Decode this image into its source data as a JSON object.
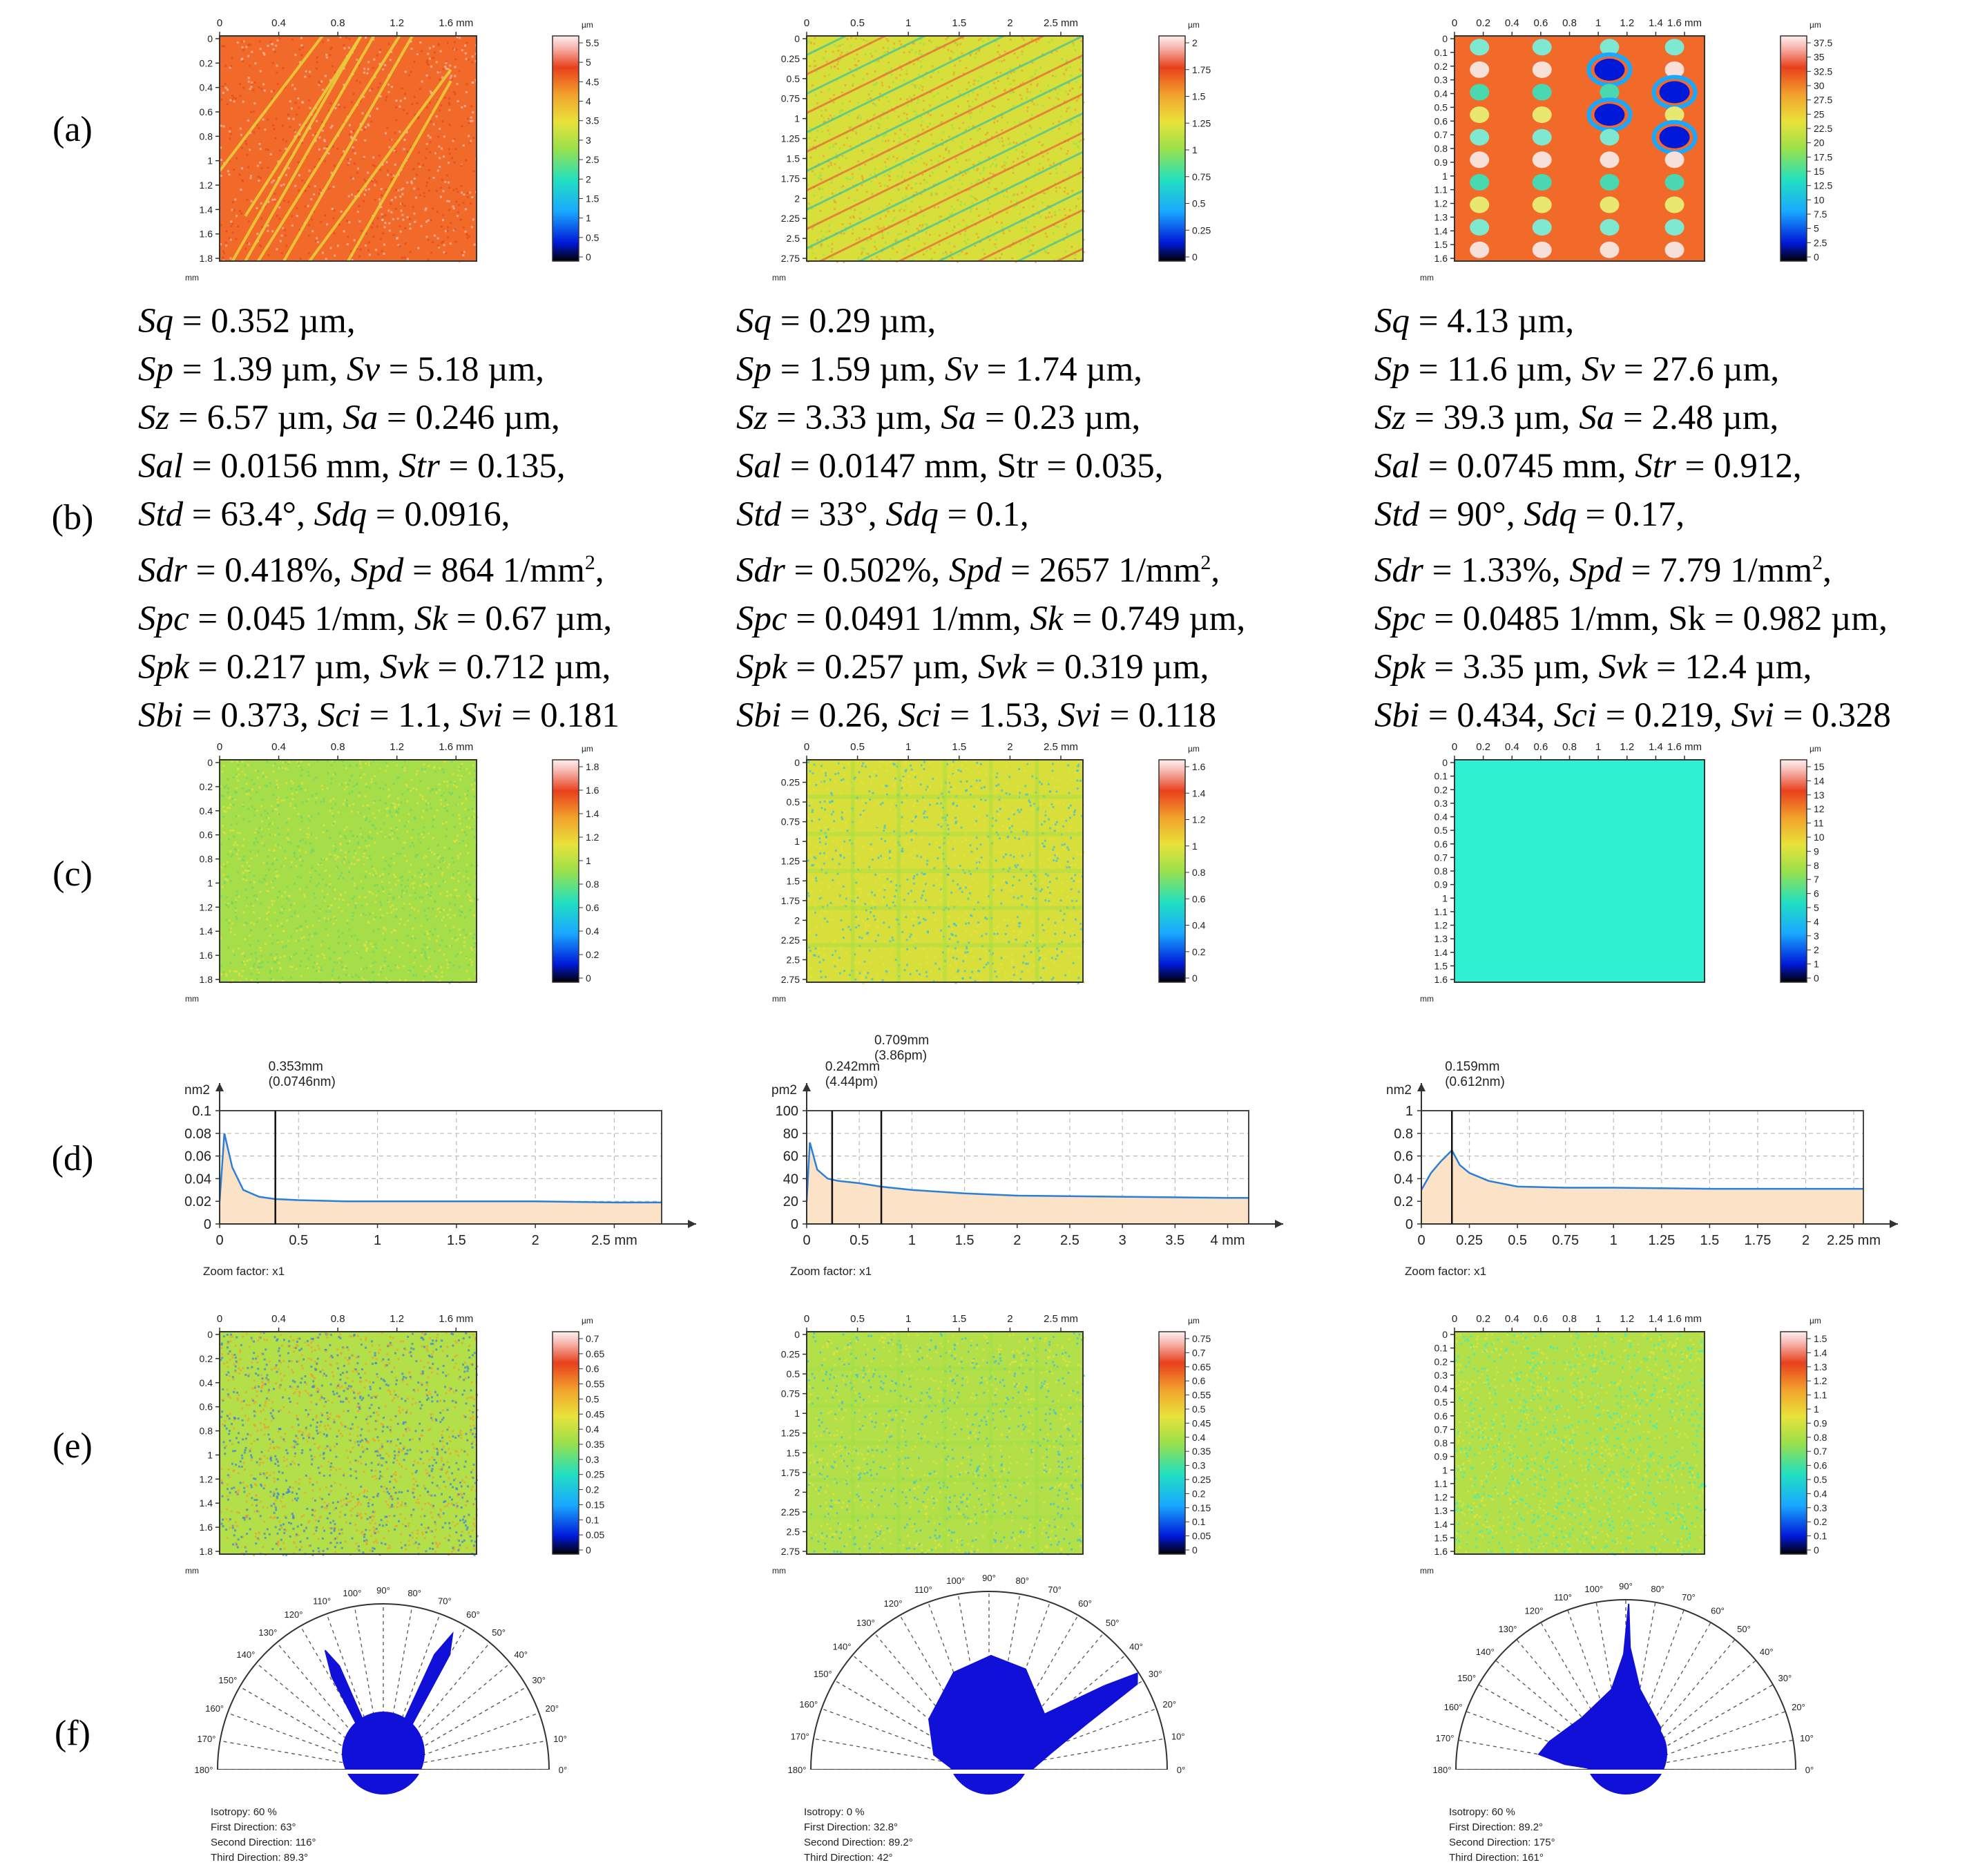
{
  "rows": {
    "a": "(a)",
    "b": "(b)",
    "c": "(c)",
    "d": "(d)",
    "e": "(e)",
    "f": "(f)"
  },
  "colors": {
    "map_orange": "#f26a2a",
    "map_yellow": "#d8df3a",
    "map_green": "#9ad948",
    "map_cyan": "#2ff0d0",
    "psd_fill": "#fce3c8",
    "psd_line": "#2b7fd6",
    "rose_blue": "#1010d8"
  },
  "row_a": [
    {
      "xticks": [
        "0",
        "0.4",
        "0.8",
        "1.2",
        "1.6 mm"
      ],
      "yticks": [
        "0",
        "0.2",
        "0.4",
        "0.6",
        "0.8",
        "1",
        "1.2",
        "1.4",
        "1.6",
        "1.8"
      ],
      "yunit": "mm",
      "scale_unit": "µm",
      "scale": [
        "5.5",
        "5",
        "4.5",
        "4",
        "3.5",
        "3",
        "2.5",
        "2",
        "1.5",
        "1",
        "0.5",
        "0"
      ]
    },
    {
      "xticks": [
        "0",
        "0.5",
        "1",
        "1.5",
        "2",
        "2.5 mm"
      ],
      "yticks": [
        "0",
        "0.25",
        "0.5",
        "0.75",
        "1",
        "1.25",
        "1.5",
        "1.75",
        "2",
        "2.25",
        "2.5",
        "2.75"
      ],
      "yunit": "mm",
      "scale_unit": "µm",
      "scale": [
        "2",
        "1.75",
        "1.5",
        "1.25",
        "1",
        "0.75",
        "0.5",
        "0.25",
        "0"
      ]
    },
    {
      "xticks": [
        "0",
        "0.2",
        "0.4",
        "0.6",
        "0.8",
        "1",
        "1.2",
        "1.4",
        "1.6 mm"
      ],
      "yticks": [
        "0",
        "0.1",
        "0.2",
        "0.3",
        "0.4",
        "0.5",
        "0.6",
        "0.7",
        "0.8",
        "0.9",
        "1",
        "1.1",
        "1.2",
        "1.3",
        "1.4",
        "1.5",
        "1.6"
      ],
      "yunit": "mm",
      "scale_unit": "µm",
      "scale": [
        "37.5",
        "35",
        "32.5",
        "30",
        "27.5",
        "25",
        "22.5",
        "20",
        "17.5",
        "15",
        "12.5",
        "10",
        "7.5",
        "5",
        "2.5",
        "0"
      ]
    }
  ],
  "params": [
    {
      "lines": [
        [
          [
            "Sq",
            "i"
          ],
          [
            " = 0.352 µm,",
            ""
          ]
        ],
        [
          [
            "Sp",
            "i"
          ],
          [
            " = 1.39 µm, ",
            ""
          ],
          [
            "Sv",
            "i"
          ],
          [
            " = 5.18 µm,",
            ""
          ]
        ],
        [
          [
            "Sz",
            "i"
          ],
          [
            " = 6.57 µm, ",
            ""
          ],
          [
            "Sa",
            "i"
          ],
          [
            " = 0.246 µm,",
            ""
          ]
        ],
        [
          [
            "Sal",
            "i"
          ],
          [
            " = 0.0156 mm, ",
            ""
          ],
          [
            "Str",
            "i"
          ],
          [
            " = 0.135,",
            ""
          ]
        ],
        [
          [
            "Std",
            "i"
          ],
          [
            " = 63.4°, ",
            ""
          ],
          [
            "Sdq",
            "i"
          ],
          [
            " = 0.0916,",
            ""
          ]
        ],
        [
          [
            "Sdr",
            "i"
          ],
          [
            " = 0.418%, ",
            ""
          ],
          [
            "Spd",
            "i"
          ],
          [
            " = 864 1/mm",
            ""
          ],
          [
            "2",
            "sup"
          ],
          [
            ",",
            ""
          ]
        ],
        [
          [
            "Spc",
            "i"
          ],
          [
            " = 0.045 1/mm, ",
            ""
          ],
          [
            "Sk",
            "i"
          ],
          [
            " = 0.67 µm,",
            ""
          ]
        ],
        [
          [
            "Spk",
            "i"
          ],
          [
            " = 0.217 µm, ",
            ""
          ],
          [
            "Svk",
            "i"
          ],
          [
            " = 0.712 µm,",
            ""
          ]
        ],
        [
          [
            "Sbi",
            "i"
          ],
          [
            " = 0.373, ",
            ""
          ],
          [
            "Sci",
            "i"
          ],
          [
            " = 1.1, ",
            ""
          ],
          [
            "Svi",
            "i"
          ],
          [
            " = 0.181",
            ""
          ]
        ]
      ]
    },
    {
      "lines": [
        [
          [
            "Sq",
            "i"
          ],
          [
            " = 0.29 µm,",
            ""
          ]
        ],
        [
          [
            "Sp",
            "i"
          ],
          [
            " = 1.59 µm, ",
            ""
          ],
          [
            "Sv",
            "i"
          ],
          [
            " = 1.74 µm,",
            ""
          ]
        ],
        [
          [
            "Sz",
            "i"
          ],
          [
            " = 3.33 µm, ",
            ""
          ],
          [
            "Sa",
            "i"
          ],
          [
            " = 0.23 µm,",
            ""
          ]
        ],
        [
          [
            "Sal",
            "i"
          ],
          [
            " = 0.0147 mm, Str = 0.035,",
            ""
          ]
        ],
        [
          [
            "Std",
            "i"
          ],
          [
            " = 33°, ",
            ""
          ],
          [
            "Sdq",
            "i"
          ],
          [
            " = 0.1,",
            ""
          ]
        ],
        [
          [
            "Sdr",
            "i"
          ],
          [
            " = 0.502%, ",
            ""
          ],
          [
            "Spd",
            "i"
          ],
          [
            " = 2657 1/mm",
            ""
          ],
          [
            "2",
            "sup"
          ],
          [
            ",",
            ""
          ]
        ],
        [
          [
            "Spc",
            "i"
          ],
          [
            " = 0.0491 1/mm, ",
            ""
          ],
          [
            "Sk",
            "i"
          ],
          [
            " = 0.749 µm,",
            ""
          ]
        ],
        [
          [
            "Spk",
            "i"
          ],
          [
            " = 0.257 µm, ",
            ""
          ],
          [
            "Svk",
            "i"
          ],
          [
            " = 0.319 µm,",
            ""
          ]
        ],
        [
          [
            "Sbi",
            "i"
          ],
          [
            " = 0.26, ",
            ""
          ],
          [
            "Sci",
            "i"
          ],
          [
            " = 1.53, ",
            ""
          ],
          [
            "Svi",
            "i"
          ],
          [
            " = 0.118",
            ""
          ]
        ]
      ]
    },
    {
      "lines": [
        [
          [
            "Sq",
            "i"
          ],
          [
            " = 4.13 µm,",
            ""
          ]
        ],
        [
          [
            "Sp",
            "i"
          ],
          [
            " = 11.6 µm, ",
            ""
          ],
          [
            "Sv",
            "i"
          ],
          [
            " = 27.6 µm,",
            ""
          ]
        ],
        [
          [
            "Sz",
            "i"
          ],
          [
            " = 39.3 µm, ",
            ""
          ],
          [
            "Sa",
            "i"
          ],
          [
            " = 2.48 µm,",
            ""
          ]
        ],
        [
          [
            "Sal",
            "i"
          ],
          [
            " = 0.0745 mm, ",
            ""
          ],
          [
            "Str",
            "i"
          ],
          [
            " = 0.912,",
            ""
          ]
        ],
        [
          [
            "Std",
            "i"
          ],
          [
            " = 90°, ",
            ""
          ],
          [
            "Sdq",
            "i"
          ],
          [
            " = 0.17,",
            ""
          ]
        ],
        [
          [
            "Sdr",
            "i"
          ],
          [
            " = 1.33%, ",
            ""
          ],
          [
            "Spd",
            "i"
          ],
          [
            " = 7.79 1/mm",
            ""
          ],
          [
            "2",
            "sup"
          ],
          [
            ",",
            ""
          ]
        ],
        [
          [
            "Spc",
            "i"
          ],
          [
            " = 0.0485 1/mm, Sk = 0.982 µm,",
            ""
          ]
        ],
        [
          [
            "Spk",
            "i"
          ],
          [
            " = 3.35 µm, ",
            ""
          ],
          [
            "Svk",
            "i"
          ],
          [
            " = 12.4 µm,",
            ""
          ]
        ],
        [
          [
            "Sbi",
            "i"
          ],
          [
            " = 0.434, ",
            ""
          ],
          [
            "Sci",
            "i"
          ],
          [
            " = 0.219, ",
            ""
          ],
          [
            "Svi",
            "i"
          ],
          [
            " = 0.328",
            ""
          ]
        ]
      ]
    }
  ],
  "row_c": [
    {
      "scale": [
        "1.8",
        "1.6",
        "1.4",
        "1.2",
        "1",
        "0.8",
        "0.6",
        "0.4",
        "0.2",
        "0"
      ]
    },
    {
      "scale": [
        "1.6",
        "1.4",
        "1.2",
        "1",
        "0.8",
        "0.6",
        "0.4",
        "0.2",
        "0"
      ]
    },
    {
      "scale": [
        "15",
        "14",
        "13",
        "12",
        "11",
        "10",
        "9",
        "8",
        "7",
        "6",
        "5",
        "4",
        "3",
        "2",
        "1",
        "0"
      ]
    }
  ],
  "row_e": [
    {
      "scale": [
        "0.7",
        "0.65",
        "0.6",
        "0.55",
        "0.5",
        "0.45",
        "0.4",
        "0.35",
        "0.3",
        "0.25",
        "0.2",
        "0.15",
        "0.1",
        "0.05",
        "0"
      ]
    },
    {
      "scale": [
        "0.75",
        "0.7",
        "0.65",
        "0.6",
        "0.55",
        "0.5",
        "0.45",
        "0.4",
        "0.35",
        "0.3",
        "0.25",
        "0.2",
        "0.15",
        "0.1",
        "0.05",
        "0"
      ]
    },
    {
      "scale": [
        "1.5",
        "1.4",
        "1.3",
        "1.2",
        "1.1",
        "1",
        "0.9",
        "0.8",
        "0.7",
        "0.6",
        "0.5",
        "0.4",
        "0.3",
        "0.2",
        "0.1",
        "0"
      ]
    }
  ],
  "chart_data": [
    {
      "type": "area",
      "title": "",
      "ylabel": "nm2",
      "xlabel": "mm",
      "ylim": [
        0,
        0.1
      ],
      "xlim": [
        0,
        2.8
      ],
      "yticks": [
        "0",
        "0.02",
        "0.04",
        "0.06",
        "0.08",
        "0.1"
      ],
      "xticks": [
        "0",
        "0.5",
        "1",
        "1.5",
        "2",
        "2.5 mm"
      ],
      "x": [
        0,
        0.03,
        0.08,
        0.15,
        0.25,
        0.35,
        0.5,
        0.8,
        1.2,
        1.5,
        2.0,
        2.5,
        2.8
      ],
      "y": [
        0.02,
        0.08,
        0.05,
        0.03,
        0.024,
        0.022,
        0.021,
        0.02,
        0.02,
        0.02,
        0.02,
        0.019,
        0.019
      ],
      "markers": [
        {
          "x": 0.353,
          "label1": "0.353mm",
          "label2": "(0.0746nm)"
        }
      ],
      "zoom": "Zoom factor: x1"
    },
    {
      "type": "area",
      "title": "",
      "ylabel": "pm2",
      "xlabel": "mm",
      "ylim": [
        0,
        100
      ],
      "xlim": [
        0,
        4.2
      ],
      "yticks": [
        "0",
        "20",
        "40",
        "60",
        "80",
        "100"
      ],
      "xticks": [
        "0",
        "0.5",
        "1",
        "1.5",
        "2",
        "2.5",
        "3",
        "3.5",
        "4 mm"
      ],
      "x": [
        0,
        0.03,
        0.1,
        0.2,
        0.3,
        0.5,
        0.7,
        1.0,
        1.5,
        2.0,
        3.0,
        4.0,
        4.2
      ],
      "y": [
        20,
        72,
        48,
        40,
        38,
        36,
        33,
        30,
        27,
        25,
        24,
        23,
        23
      ],
      "markers": [
        {
          "x": 0.242,
          "label1": "0.242mm",
          "label2": "(4.44pm)"
        },
        {
          "x": 0.709,
          "label1": "0.709mm",
          "label2": "(3.86pm)"
        }
      ],
      "zoom": "Zoom factor: x1"
    },
    {
      "type": "area",
      "title": "",
      "ylabel": "nm2",
      "xlabel": "mm",
      "ylim": [
        0,
        1
      ],
      "xlim": [
        0,
        2.3
      ],
      "yticks": [
        "0",
        "0.2",
        "0.4",
        "0.6",
        "0.8",
        "1"
      ],
      "xticks": [
        "0",
        "0.25",
        "0.5",
        "0.75",
        "1",
        "1.25",
        "1.5",
        "1.75",
        "2",
        "2.25 mm"
      ],
      "x": [
        0,
        0.05,
        0.1,
        0.159,
        0.2,
        0.25,
        0.35,
        0.5,
        0.75,
        1.0,
        1.5,
        2.0,
        2.3
      ],
      "y": [
        0.3,
        0.45,
        0.55,
        0.65,
        0.52,
        0.45,
        0.38,
        0.33,
        0.32,
        0.32,
        0.31,
        0.31,
        0.31
      ],
      "markers": [
        {
          "x": 0.159,
          "label1": "0.159mm",
          "label2": "(0.612nm)"
        }
      ],
      "zoom": "Zoom factor: x1"
    }
  ],
  "row_f": [
    {
      "isotropy": "Isotropy: 60 %",
      "first": "First Direction: 63°",
      "second": "Second Direction: 116°",
      "third": "Third Direction: 89.3°"
    },
    {
      "isotropy": "Isotropy: 0 %",
      "first": "First Direction: 32.8°",
      "second": "Second Direction: 89.2°",
      "third": "Third Direction: 42°"
    },
    {
      "isotropy": "Isotropy: 60 %",
      "first": "First Direction: 89.2°",
      "second": "Second Direction: 175°",
      "third": "Third Direction: 161°"
    }
  ],
  "rose_angles": [
    "0°",
    "10°",
    "20°",
    "30°",
    "40°",
    "50°",
    "60°",
    "70°",
    "80°",
    "90°",
    "100°",
    "110°",
    "120°",
    "130°",
    "140°",
    "150°",
    "160°",
    "170°",
    "180°"
  ]
}
